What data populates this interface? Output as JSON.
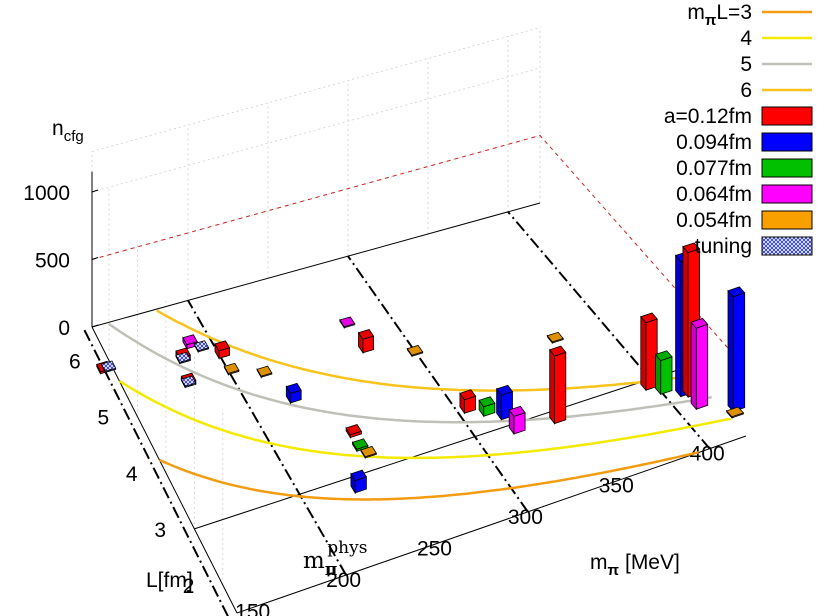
{
  "chart_data": {
    "type": "bar3d",
    "title": "",
    "zlabel": "n",
    "zlabel_sub": "cfg",
    "xlabel": "m",
    "xlabel_sub": "π",
    "xlabel_unit": "[MeV]",
    "ylabel": "L[fm]",
    "x_ticks": [
      "150",
      "200",
      "250",
      "300",
      "350",
      "400"
    ],
    "y_ticks": [
      "2",
      "3",
      "4",
      "5",
      "6"
    ],
    "z_ticks": [
      "0",
      "500",
      "1000"
    ],
    "xlim": [
      140,
      420
    ],
    "ylim": [
      1.5,
      6.6
    ],
    "zlim": [
      0,
      1300
    ],
    "physical_point_label": "m",
    "physical_point_sub": "π",
    "physical_point_sup": "phys",
    "physical_point_mass": 135,
    "curves": [
      {
        "label": "m",
        "label_sub": "π",
        "label_suffix": "L=3",
        "mpiL": 3,
        "color": "#f39c12"
      },
      {
        "label": "4",
        "mpiL": 4,
        "color": "#f3ea00"
      },
      {
        "label": "5",
        "mpiL": 5,
        "color": "#c0c0b8"
      },
      {
        "label": "6",
        "mpiL": 6,
        "color": "#f7c31c"
      }
    ],
    "series": [
      {
        "name": "a=0.12fm",
        "color": "#ff0000"
      },
      {
        "name": "0.094fm",
        "color": "#0000ff"
      },
      {
        "name": "0.077fm",
        "color": "#00c000"
      },
      {
        "name": "0.064fm",
        "color": "#ff00ff"
      },
      {
        "name": "0.054fm",
        "color": "#f7a000"
      },
      {
        "name": "tuning",
        "color": "#2233dd",
        "pattern": true
      }
    ],
    "bars": [
      {
        "series": 0,
        "x": 135,
        "y": 5.9,
        "z": 15
      },
      {
        "series": 5,
        "x": 138,
        "y": 5.9,
        "z": 8
      },
      {
        "series": 0,
        "x": 180,
        "y": 5.7,
        "z": 40
      },
      {
        "series": 5,
        "x": 180,
        "y": 5.7,
        "z": 8
      },
      {
        "series": 0,
        "x": 176,
        "y": 5.3,
        "z": 30
      },
      {
        "series": 5,
        "x": 176,
        "y": 5.3,
        "z": 8
      },
      {
        "series": 5,
        "x": 193,
        "y": 5.8,
        "z": 8
      },
      {
        "series": 3,
        "x": 188,
        "y": 5.9,
        "z": 30
      },
      {
        "series": 0,
        "x": 202,
        "y": 5.6,
        "z": 55
      },
      {
        "series": 4,
        "x": 202,
        "y": 5.3,
        "z": 8
      },
      {
        "series": 4,
        "x": 218,
        "y": 5.1,
        "z": 8
      },
      {
        "series": 1,
        "x": 225,
        "y": 4.55,
        "z": 70
      },
      {
        "series": 0,
        "x": 244,
        "y": 3.7,
        "z": 20
      },
      {
        "series": 2,
        "x": 243,
        "y": 3.45,
        "z": 15
      },
      {
        "series": 4,
        "x": 245,
        "y": 3.3,
        "z": 8
      },
      {
        "series": 1,
        "x": 230,
        "y": 2.8,
        "z": 90
      },
      {
        "series": 0,
        "x": 277,
        "y": 5.0,
        "z": 100
      },
      {
        "series": 3,
        "x": 276,
        "y": 5.5,
        "z": 8
      },
      {
        "series": 4,
        "x": 300,
        "y": 4.7,
        "z": 8
      },
      {
        "series": 0,
        "x": 306,
        "y": 3.5,
        "z": 100
      },
      {
        "series": 2,
        "x": 314,
        "y": 3.35,
        "z": 70
      },
      {
        "series": 1,
        "x": 321,
        "y": 3.2,
        "z": 180
      },
      {
        "series": 3,
        "x": 322,
        "y": 2.9,
        "z": 130
      },
      {
        "series": 0,
        "x": 344,
        "y": 2.85,
        "z": 500
      },
      {
        "series": 4,
        "x": 372,
        "y": 4.2,
        "z": 8
      },
      {
        "series": 0,
        "x": 397,
        "y": 2.9,
        "z": 500
      },
      {
        "series": 2,
        "x": 402,
        "y": 2.75,
        "z": 250
      },
      {
        "series": 1,
        "x": 410,
        "y": 2.6,
        "z": 1000
      },
      {
        "series": 0,
        "x": 413,
        "y": 2.55,
        "z": 1070
      },
      {
        "series": 3,
        "x": 412,
        "y": 2.3,
        "z": 600
      },
      {
        "series": 1,
        "x": 427,
        "y": 2.05,
        "z": 850
      },
      {
        "series": 4,
        "x": 424,
        "y": 1.95,
        "z": 8
      }
    ]
  }
}
